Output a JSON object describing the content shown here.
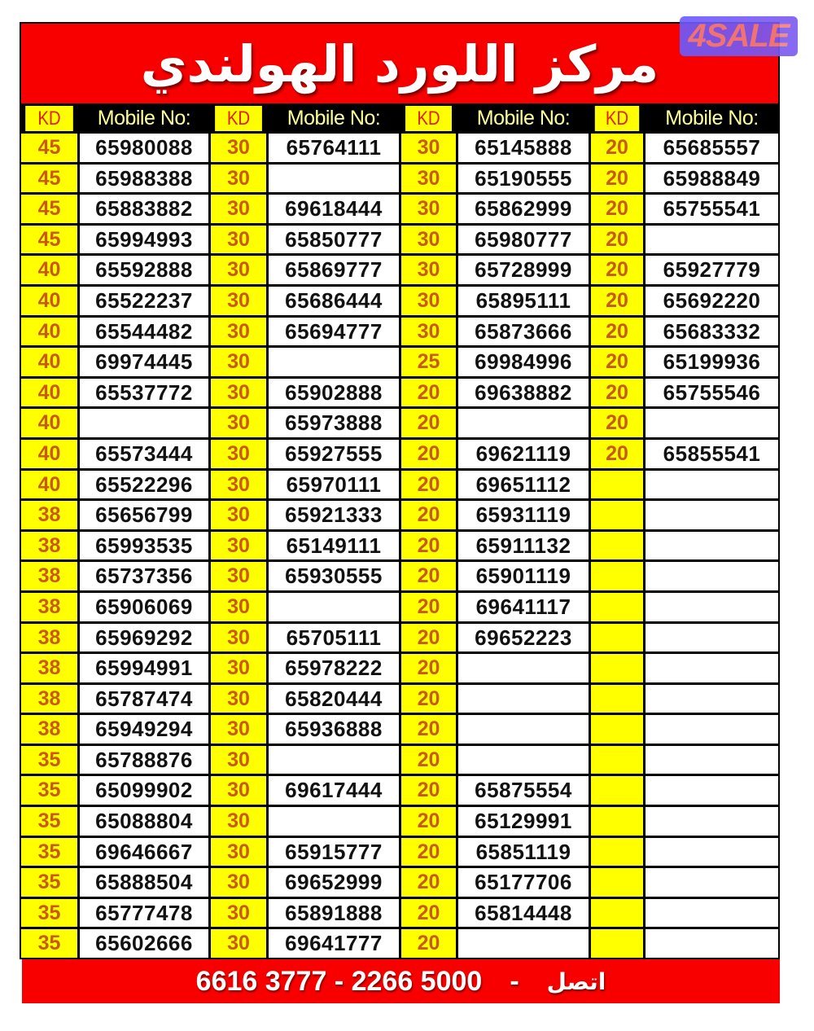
{
  "title": "مركز اللورد الهولندي",
  "logo": "4SALE",
  "header": {
    "kd": "KD",
    "mobile": "Mobile No:"
  },
  "columns": [
    {
      "kd": [
        "45",
        "45",
        "45",
        "45",
        "40",
        "40",
        "40",
        "40",
        "40",
        "40",
        "40",
        "40",
        "38",
        "38",
        "38",
        "38",
        "38",
        "38",
        "38",
        "38",
        "35",
        "35",
        "35",
        "35",
        "35",
        "35",
        "35"
      ],
      "mobile": [
        "65980088",
        "65988388",
        "65883882",
        "65994993",
        "65592888",
        "65522237",
        "65544482",
        "69974445",
        "65537772",
        "",
        "65573444",
        "65522296",
        "65656799",
        "65993535",
        "65737356",
        "65906069",
        "65969292",
        "65994991",
        "65787474",
        "65949294",
        "65788876",
        "65099902",
        "65088804",
        "69646667",
        "65888504",
        "65777478",
        "65602666"
      ]
    },
    {
      "kd": [
        "30",
        "30",
        "30",
        "30",
        "30",
        "30",
        "30",
        "30",
        "30",
        "30",
        "30",
        "30",
        "30",
        "30",
        "30",
        "30",
        "30",
        "30",
        "30",
        "30",
        "30",
        "30",
        "30",
        "30",
        "30",
        "30",
        "30"
      ],
      "mobile": [
        "65764111",
        "",
        "69618444",
        "65850777",
        "65869777",
        "65686444",
        "65694777",
        "",
        "65902888",
        "65973888",
        "65927555",
        "65970111",
        "65921333",
        "65149111",
        "65930555",
        "",
        "65705111",
        "65978222",
        "65820444",
        "65936888",
        "",
        "69617444",
        "",
        "65915777",
        "69652999",
        "65891888",
        "69641777"
      ]
    },
    {
      "kd": [
        "30",
        "30",
        "30",
        "30",
        "30",
        "30",
        "30",
        "25",
        "20",
        "20",
        "20",
        "20",
        "20",
        "20",
        "20",
        "20",
        "20",
        "20",
        "20",
        "20",
        "20",
        "20",
        "20",
        "20",
        "20",
        "20",
        "20"
      ],
      "mobile": [
        "65145888",
        "65190555",
        "65862999",
        "65980777",
        "65728999",
        "65895111",
        "65873666",
        "69984996",
        "69638882",
        "",
        "69621119",
        "69651112",
        "65931119",
        "65911132",
        "65901119",
        "69641117",
        "69652223",
        "",
        "",
        "",
        "",
        "65875554",
        "65129991",
        "65851119",
        "65177706",
        "65814448",
        ""
      ]
    },
    {
      "kd": [
        "20",
        "20",
        "20",
        "20",
        "20",
        "20",
        "20",
        "20",
        "20",
        "20",
        "20",
        "",
        "",
        "",
        "",
        "",
        "",
        "",
        "",
        "",
        "",
        "",
        "",
        "",
        "",
        "",
        ""
      ],
      "mobile": [
        "65685557",
        "65988849",
        "65755541",
        "",
        "65927779",
        "65692220",
        "65683332",
        "65199936",
        "65755546",
        "",
        "65855541",
        "",
        "",
        "",
        "",
        "",
        "",
        "",
        "",
        "",
        "",
        "",
        "",
        "",
        "",
        "",
        ""
      ]
    }
  ],
  "footer": {
    "label": "اتصل",
    "separator": "-",
    "phones": "6616 3777 - 2266 5000"
  },
  "colors": {
    "banner": "#f80000",
    "kd_cell": "#ffff00",
    "kd_text": "#c85a0a",
    "header_text": "#ffff99"
  }
}
